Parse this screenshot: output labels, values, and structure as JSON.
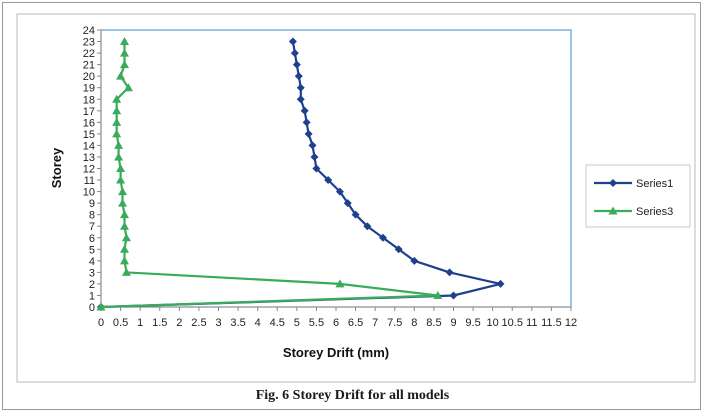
{
  "caption": "Fig. 6 Storey Drift for all models",
  "chart_data": {
    "type": "line",
    "title": "",
    "xlabel": "Storey Drift  (mm)",
    "ylabel": "Storey",
    "xlim": [
      0,
      12
    ],
    "ylim": [
      0,
      24
    ],
    "x_ticks": [
      "0",
      "0.5",
      "1",
      "1.5",
      "2",
      "2.5",
      "3",
      "3.5",
      "4",
      "4.5",
      "5",
      "5.5",
      "6",
      "6.5",
      "7",
      "7.5",
      "8",
      "8.5",
      "9",
      "9.5",
      "10",
      "10.5",
      "11",
      "11.5",
      "12"
    ],
    "y_ticks": [
      "0",
      "1",
      "2",
      "3",
      "4",
      "5",
      "6",
      "7",
      "8",
      "9",
      "10",
      "11",
      "12",
      "13",
      "14",
      "15",
      "16",
      "17",
      "18",
      "19",
      "20",
      "21",
      "22",
      "23",
      "24"
    ],
    "grid": false,
    "legend_position": "right",
    "series": [
      {
        "name": "Series1",
        "color": "#1f3f8f",
        "marker": "diamond",
        "points": [
          [
            0,
            0
          ],
          [
            9,
            1
          ],
          [
            10.2,
            2
          ],
          [
            8.9,
            3
          ],
          [
            8,
            4
          ],
          [
            7.6,
            5
          ],
          [
            7.2,
            6
          ],
          [
            6.8,
            7
          ],
          [
            6.5,
            8
          ],
          [
            6.3,
            9
          ],
          [
            6.1,
            10
          ],
          [
            5.8,
            11
          ],
          [
            5.5,
            12
          ],
          [
            5.45,
            13
          ],
          [
            5.4,
            14
          ],
          [
            5.3,
            15
          ],
          [
            5.25,
            16
          ],
          [
            5.2,
            17
          ],
          [
            5.1,
            18
          ],
          [
            5.1,
            19
          ],
          [
            5.05,
            20
          ],
          [
            5.0,
            21
          ],
          [
            4.95,
            22
          ],
          [
            4.9,
            23
          ]
        ]
      },
      {
        "name": "Series3",
        "color": "#3aab5a",
        "marker": "triangle",
        "points": [
          [
            0,
            0
          ],
          [
            8.6,
            1
          ],
          [
            6.1,
            2
          ],
          [
            0.65,
            3
          ],
          [
            0.6,
            4
          ],
          [
            0.6,
            5
          ],
          [
            0.65,
            6
          ],
          [
            0.6,
            7
          ],
          [
            0.6,
            8
          ],
          [
            0.55,
            9
          ],
          [
            0.55,
            10
          ],
          [
            0.5,
            11
          ],
          [
            0.5,
            12
          ],
          [
            0.45,
            13
          ],
          [
            0.45,
            14
          ],
          [
            0.4,
            15
          ],
          [
            0.4,
            16
          ],
          [
            0.4,
            17
          ],
          [
            0.4,
            18
          ],
          [
            0.7,
            19
          ],
          [
            0.5,
            20
          ],
          [
            0.6,
            21
          ],
          [
            0.6,
            22
          ],
          [
            0.6,
            23
          ]
        ]
      }
    ]
  }
}
